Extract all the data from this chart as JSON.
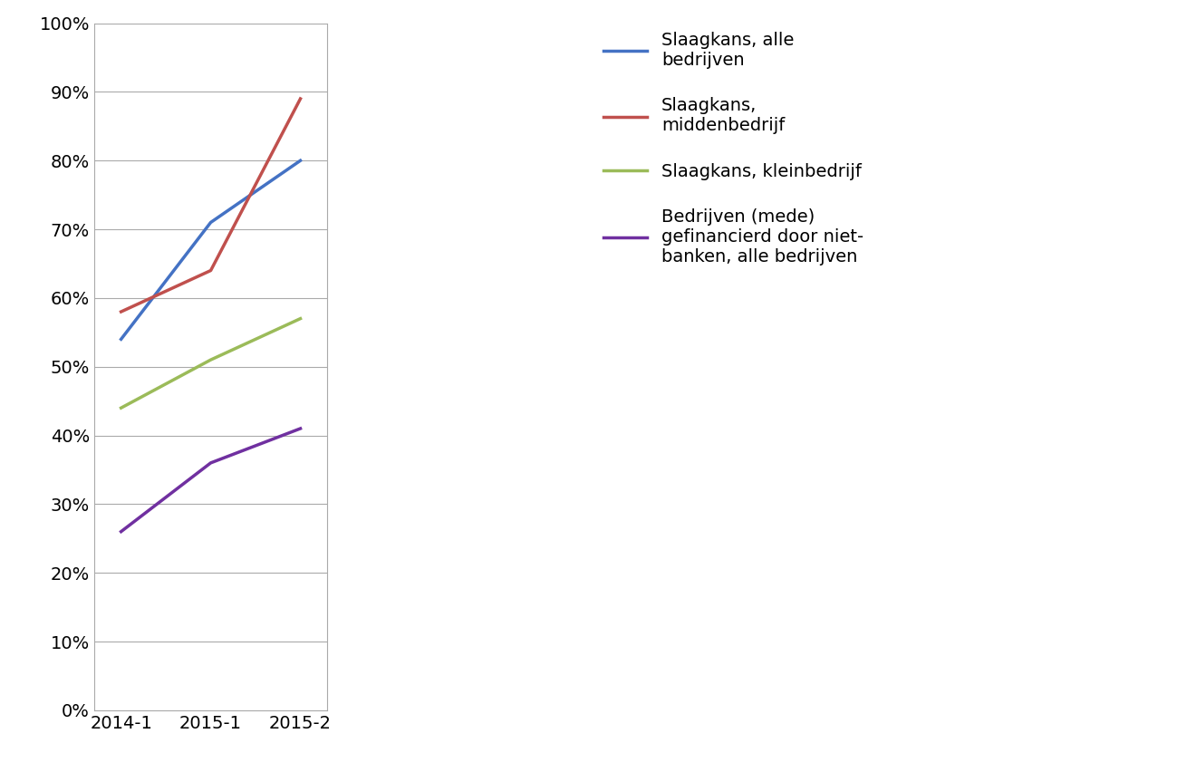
{
  "x_labels": [
    "2014-1",
    "2015-1",
    "2015-2"
  ],
  "x_positions": [
    0,
    1,
    2
  ],
  "series": [
    {
      "label": "Slaagkans, alle\nbedrijven",
      "values": [
        0.54,
        0.71,
        0.8
      ],
      "color": "#4472C4",
      "linewidth": 2.5
    },
    {
      "label": "Slaagkans,\nmiddenbedrijf",
      "values": [
        0.58,
        0.64,
        0.89
      ],
      "color": "#C0504D",
      "linewidth": 2.5
    },
    {
      "label": "Slaagkans, kleinbedrijf",
      "values": [
        0.44,
        0.51,
        0.57
      ],
      "color": "#9BBB59",
      "linewidth": 2.5
    },
    {
      "label": "Bedrijven (mede)\ngefinancierd door niet-\nbanken, alle bedrijven",
      "values": [
        0.26,
        0.36,
        0.41
      ],
      "color": "#7030A0",
      "linewidth": 2.5
    }
  ],
  "ylim": [
    0.0,
    1.0
  ],
  "yticks": [
    0.0,
    0.1,
    0.2,
    0.3,
    0.4,
    0.5,
    0.6,
    0.7,
    0.8,
    0.9,
    1.0
  ],
  "background_color": "#FFFFFF",
  "grid_color": "#AAAAAA",
  "spine_color": "#AAAAAA",
  "legend_fontsize": 14,
  "tick_fontsize": 14,
  "legend_labelspacing": 1.6,
  "legend_handlelength": 2.5
}
